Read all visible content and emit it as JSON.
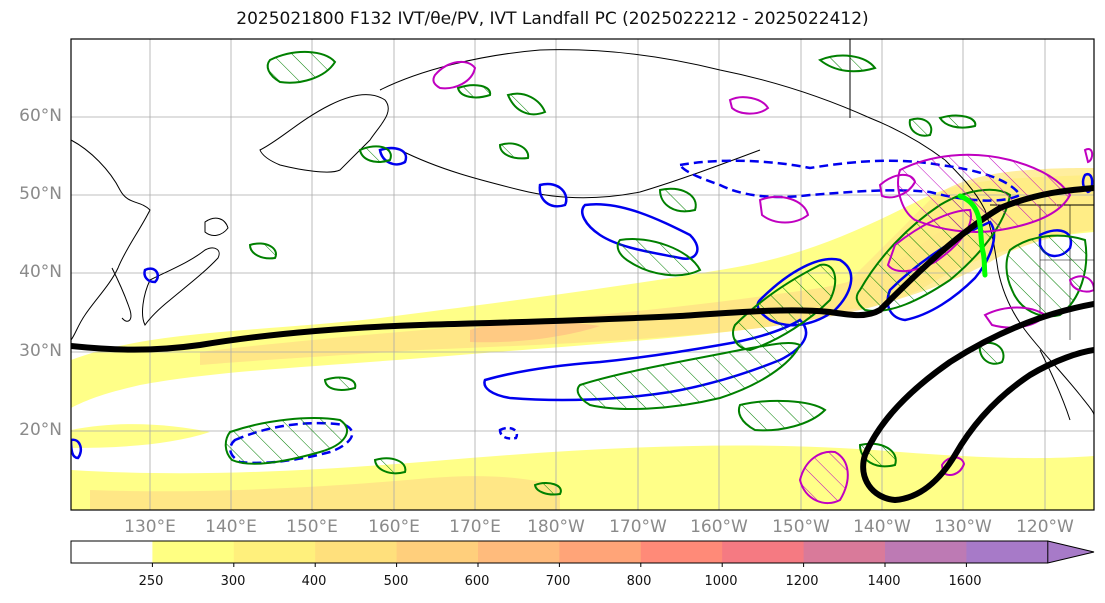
{
  "title": "2025021800 F132 IVT/θe/PV, IVT Landfall PC (2025022212 - 2025022412)",
  "map": {
    "lat_labels": [
      "60°N",
      "50°N",
      "40°N",
      "30°N",
      "20°N"
    ],
    "lon_labels": [
      "130°E",
      "140°E",
      "150°E",
      "160°E",
      "170°E",
      "180°W",
      "170°W",
      "160°W",
      "150°W",
      "140°W",
      "130°W",
      "120°W"
    ],
    "colors": {
      "ivt_250": "#ffff82",
      "ivt_300": "#fff082",
      "ivt_400": "#ffe080",
      "thick_contour": "#000000",
      "blue_contour": "#0000ee",
      "green_contour": "#008000",
      "magenta_contour": "#c000c0",
      "landfall_line": "#00ff00",
      "coast": "#000000",
      "grid": "#aaaaaa"
    }
  },
  "colorbar": {
    "labels": [
      "250",
      "300",
      "400",
      "500",
      "600",
      "700",
      "800",
      "1000",
      "1200",
      "1400",
      "1600"
    ],
    "colors": [
      "#ffffff",
      "#ffff82",
      "#fff07c",
      "#ffe07c",
      "#ffcf7c",
      "#ffbb7c",
      "#ffa478",
      "#ff8a78",
      "#f57a82",
      "#d97a9a",
      "#bd7ab4",
      "#a77ac8"
    ]
  }
}
